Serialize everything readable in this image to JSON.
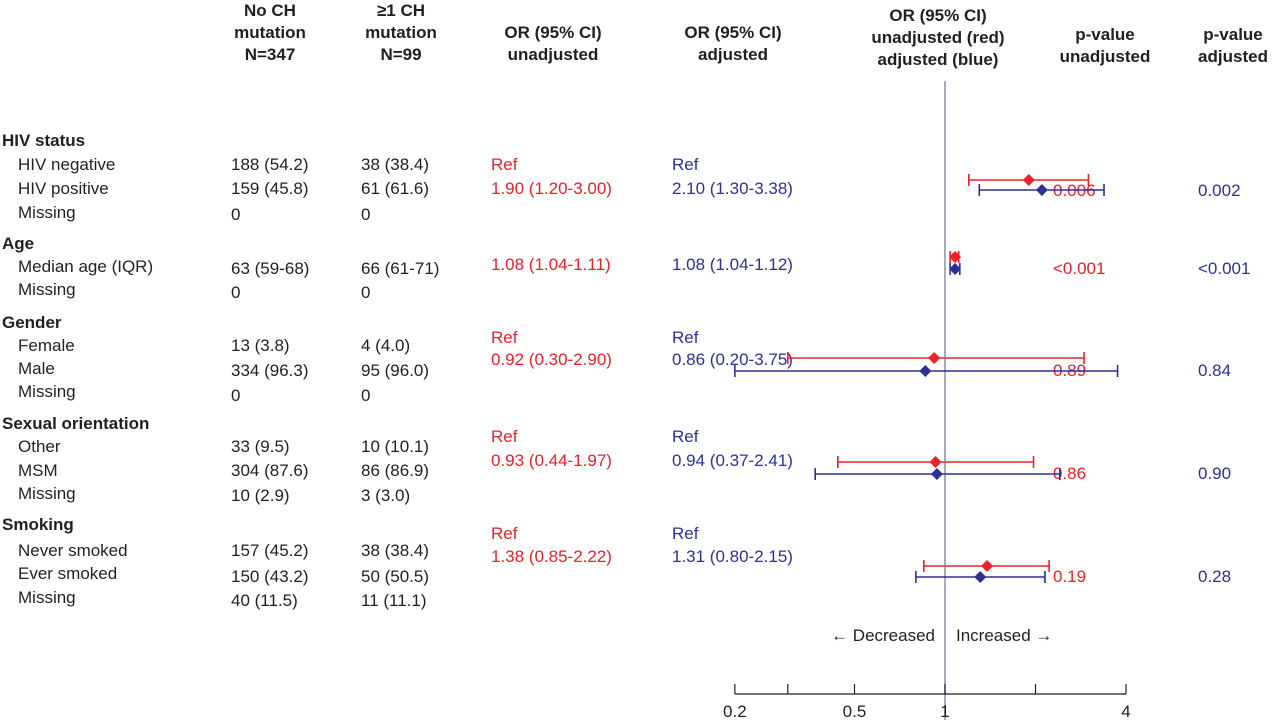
{
  "headers": {
    "no_ch": [
      "No CH",
      "mutation",
      "N=347"
    ],
    "ch": [
      "≥1 CH",
      "mutation",
      "N=99"
    ],
    "or_unadj": [
      "OR (95% CI)",
      "unadjusted"
    ],
    "or_adj": [
      "OR (95% CI)",
      "adjusted"
    ],
    "forest": [
      "OR (95% CI)",
      "unadjusted (red)",
      "adjusted (blue)"
    ],
    "p_unadj": [
      "p-value",
      "unadjusted"
    ],
    "p_adj": [
      "p-value",
      "adjusted"
    ]
  },
  "sections": [
    {
      "title": "HIV status",
      "rows": [
        {
          "label": "HIV negative",
          "no_ch": "188 (54.2)",
          "ch": "38 (38.4)"
        },
        {
          "label": "HIV positive",
          "no_ch": "159 (45.8)",
          "ch": "61 (61.6)"
        },
        {
          "label": "Missing",
          "no_ch": "0",
          "ch": "0"
        }
      ],
      "or_unadj": [
        "Ref",
        "1.90 (1.20-3.00)"
      ],
      "or_adj": [
        "Ref",
        "2.10 (1.30-3.38)"
      ],
      "p_unadj": "0.006",
      "p_adj": "0.002"
    },
    {
      "title": "Age",
      "rows": [
        {
          "label": "Median age (IQR)",
          "no_ch": "63 (59-68)",
          "ch": "66 (61-71)"
        },
        {
          "label": "Missing",
          "no_ch": "0",
          "ch": "0"
        }
      ],
      "or_unadj": [
        "1.08 (1.04-1.11)"
      ],
      "or_adj": [
        "1.08 (1.04-1.12)"
      ],
      "p_unadj": "<0.001",
      "p_adj": "<0.001"
    },
    {
      "title": "Gender",
      "rows": [
        {
          "label": "Female",
          "no_ch": "13 (3.8)",
          "ch": "4 (4.0)"
        },
        {
          "label": "Male",
          "no_ch": "334 (96.3)",
          "ch": "95 (96.0)"
        },
        {
          "label": "Missing",
          "no_ch": "0",
          "ch": "0"
        }
      ],
      "or_unadj": [
        "Ref",
        "0.92 (0.30-2.90)"
      ],
      "or_adj": [
        "Ref",
        "0.86 (0.20-3.75)"
      ],
      "p_unadj": "0.89",
      "p_adj": "0.84"
    },
    {
      "title": "Sexual orientation",
      "rows": [
        {
          "label": "Other",
          "no_ch": "33 (9.5)",
          "ch": "10 (10.1)"
        },
        {
          "label": "MSM",
          "no_ch": "304 (87.6)",
          "ch": "86 (86.9)"
        },
        {
          "label": "Missing",
          "no_ch": "10 (2.9)",
          "ch": "3 (3.0)"
        }
      ],
      "or_unadj": [
        "Ref",
        "0.93 (0.44-1.97)"
      ],
      "or_adj": [
        "Ref",
        "0.94 (0.37-2.41)"
      ],
      "p_unadj": "0.86",
      "p_adj": "0.90"
    },
    {
      "title": "Smoking",
      "rows": [
        {
          "label": "Never smoked",
          "no_ch": "157 (45.2)",
          "ch": "38 (38.4)"
        },
        {
          "label": "Ever smoked",
          "no_ch": "150 (43.2)",
          "ch": "50 (50.5)"
        },
        {
          "label": "Missing",
          "no_ch": "40 (11.5)",
          "ch": "11 (11.1)"
        }
      ],
      "or_unadj": [
        "Ref",
        "1.38 (0.85-2.22)"
      ],
      "or_adj": [
        "Ref",
        "1.31 (0.80-2.15)"
      ],
      "p_unadj": "0.19",
      "p_adj": "0.28"
    }
  ],
  "chart_data": {
    "type": "forest",
    "log_scale": true,
    "reference_line": 1,
    "xlim": [
      0.2,
      4
    ],
    "ticks": [
      0.2,
      0.5,
      1,
      4
    ],
    "tick_labels": [
      "0.2",
      "0.5",
      "1",
      "4"
    ],
    "decreased_label": "← Decreased",
    "increased_label": "Increased →",
    "colors": {
      "unadjusted": "#e8212b",
      "adjusted": "#2e3192",
      "reference": "#8a8fa8"
    },
    "series": [
      {
        "name": "unadjusted (red)",
        "points": [
          {
            "category": "HIV status",
            "or": 1.9,
            "lo": 1.2,
            "hi": 3.0
          },
          {
            "category": "Age",
            "or": 1.08,
            "lo": 1.04,
            "hi": 1.11
          },
          {
            "category": "Gender",
            "or": 0.92,
            "lo": 0.3,
            "hi": 2.9
          },
          {
            "category": "Sexual orientation",
            "or": 0.93,
            "lo": 0.44,
            "hi": 1.97
          },
          {
            "category": "Smoking",
            "or": 1.38,
            "lo": 0.85,
            "hi": 2.22
          }
        ]
      },
      {
        "name": "adjusted (blue)",
        "points": [
          {
            "category": "HIV status",
            "or": 2.1,
            "lo": 1.3,
            "hi": 3.38
          },
          {
            "category": "Age",
            "or": 1.08,
            "lo": 1.04,
            "hi": 1.12
          },
          {
            "category": "Gender",
            "or": 0.86,
            "lo": 0.2,
            "hi": 3.75
          },
          {
            "category": "Sexual orientation",
            "or": 0.94,
            "lo": 0.37,
            "hi": 2.41
          },
          {
            "category": "Smoking",
            "or": 1.31,
            "lo": 0.8,
            "hi": 2.15
          }
        ]
      }
    ]
  }
}
